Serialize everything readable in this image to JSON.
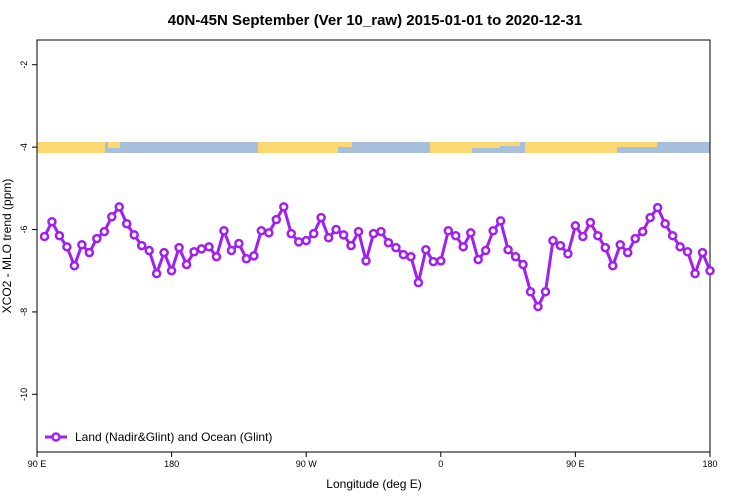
{
  "chart_data": {
    "type": "line",
    "title": "40N-45N September (Ver 10_raw)   2015-01-01 to 2020-12-31",
    "x_label": "Longitude (deg E)",
    "y_label": "XCO2 - MLO trend (ppm)",
    "xlim": [
      90,
      540
    ],
    "xticks": [
      {
        "value": 90,
        "label": "90 E"
      },
      180,
      {
        "value": 270,
        "label": "90 W"
      },
      {
        "value": 360,
        "label": "0"
      },
      {
        "value": 450,
        "label": "90 E"
      },
      {
        "value": 540,
        "label": "180"
      }
    ],
    "ylim": [
      -11.4,
      -1.4
    ],
    "yticks": [
      -2,
      -4,
      -6,
      -8,
      -10
    ],
    "legend": "bottom-left",
    "x": [
      95,
      100,
      105,
      110,
      115,
      120,
      125,
      130,
      135,
      140,
      145,
      150,
      155,
      160,
      165,
      170,
      175,
      180,
      185,
      190,
      195,
      200,
      205,
      210,
      215,
      220,
      225,
      230,
      235,
      240,
      245,
      250,
      255,
      260,
      265,
      270,
      275,
      280,
      285,
      290,
      295,
      300,
      305,
      310,
      315,
      320,
      325,
      330,
      335,
      340,
      345,
      350,
      355,
      360,
      365,
      370,
      375,
      380,
      385,
      390,
      395,
      400,
      405,
      410,
      415,
      420,
      425,
      430,
      435,
      440,
      445,
      450,
      455,
      460,
      465,
      470,
      475,
      480,
      485,
      490,
      495,
      500,
      505,
      510,
      515,
      520,
      525,
      530,
      535,
      540
    ],
    "series": [
      {
        "name": "Land (Nadir&Glint) and Ocean (Glint)",
        "color": "#a020f0",
        "values": [
          -6.17,
          -5.81,
          -6.15,
          -6.42,
          -6.88,
          -6.37,
          -6.56,
          -6.22,
          -6.05,
          -5.69,
          -5.45,
          -5.86,
          -6.13,
          -6.39,
          -6.51,
          -7.07,
          -6.56,
          -7.0,
          -6.44,
          -6.85,
          -6.54,
          -6.47,
          -6.42,
          -6.66,
          -6.03,
          -6.51,
          -6.34,
          -6.71,
          -6.64,
          -6.03,
          -6.08,
          -5.76,
          -5.45,
          -6.1,
          -6.3,
          -6.27,
          -6.1,
          -5.71,
          -6.2,
          -6.0,
          -6.13,
          -6.39,
          -6.05,
          -6.76,
          -6.1,
          -6.05,
          -6.32,
          -6.44,
          -6.61,
          -6.66,
          -7.29,
          -6.49,
          -6.78,
          -6.76,
          -6.03,
          -6.15,
          -6.42,
          -6.08,
          -6.73,
          -6.51,
          -6.03,
          -5.79,
          -6.49,
          -6.66,
          -6.85,
          -7.51,
          -7.87,
          -7.51,
          -6.27,
          -6.39,
          -6.59,
          -5.91,
          -6.17,
          -5.83,
          -6.15,
          -6.44,
          -6.88,
          -6.37,
          -6.56,
          -6.22,
          -6.05,
          -5.71,
          -5.47,
          -5.86,
          -6.15,
          -6.42,
          -6.54,
          -7.07,
          -6.56,
          -7.0
        ]
      }
    ]
  }
}
